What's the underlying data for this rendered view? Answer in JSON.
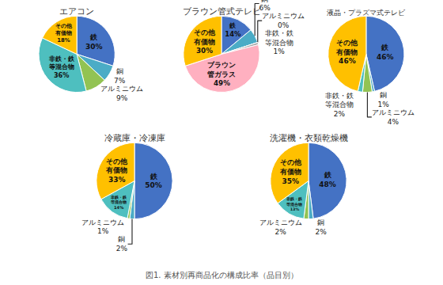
{
  "title": "図1. 素材別再商品化の構成比率（品目別）",
  "chart_data": [
    {
      "type": "pie",
      "title": "エアコン",
      "categories": [
        "鉄",
        "銅",
        "アルミニウム",
        "非鉄・鉄\n等混合物",
        "その他\n有価物"
      ],
      "values": [
        30,
        7,
        9,
        36,
        18
      ],
      "value_labels": [
        "30%",
        "7%",
        "9%",
        "36%",
        "18%"
      ],
      "colors": [
        "#4472C4",
        "#4BACC6",
        "#92C353",
        "#4EBFBF",
        "#FFC000"
      ]
    },
    {
      "type": "pie",
      "title": "ブラウン管式テレビ",
      "categories": [
        "鉄",
        "銅",
        "アルミニウム",
        "非鉄・鉄\n等混合物",
        "ブラウン\n管ガラス",
        "その他\n有価物"
      ],
      "values": [
        14,
        6,
        0,
        1,
        49,
        30
      ],
      "value_labels": [
        "14%",
        "6%",
        "0%",
        "1%",
        "49%",
        "30%"
      ],
      "colors": [
        "#4472C4",
        "#4BACC6",
        "#92C353",
        "#A8A8A8",
        "#FFB0C0",
        "#FFC000"
      ]
    },
    {
      "type": "pie",
      "title": "液晶・プラズマ式テレビ",
      "categories": [
        "鉄",
        "銅",
        "アルミニウム",
        "非鉄・鉄\n等混合物",
        "その他\n有価物"
      ],
      "values": [
        46,
        1,
        4,
        2,
        46
      ],
      "value_labels": [
        "46%",
        "1%",
        "4%",
        "2%",
        "46%"
      ],
      "colors": [
        "#4472C4",
        "#4BACC6",
        "#92C353",
        "#4EBFBF",
        "#FFC000"
      ]
    },
    {
      "type": "pie",
      "title": "冷蔵庫・冷凍庫",
      "categories": [
        "鉄",
        "銅",
        "アルミニウム",
        "非鉄・鉄\n等混合物",
        "その他\n有価物"
      ],
      "values": [
        50,
        2,
        1,
        14,
        33
      ],
      "value_labels": [
        "50%",
        "2%",
        "1%",
        "14%",
        "33%"
      ],
      "colors": [
        "#4472C4",
        "#4BACC6",
        "#92C353",
        "#4EBFBF",
        "#FFC000"
      ]
    },
    {
      "type": "pie",
      "title": "洗濯機・衣類乾燥機",
      "categories": [
        "鉄",
        "銅",
        "アルミニウム",
        "非鉄・鉄\n等混合物",
        "その他\n有価物"
      ],
      "values": [
        48,
        2,
        2,
        13,
        35
      ],
      "value_labels": [
        "48%",
        "2%",
        "2%",
        "13%",
        "35%"
      ],
      "colors": [
        "#4472C4",
        "#4BACC6",
        "#92C353",
        "#4EBFBF",
        "#FFC000"
      ]
    }
  ]
}
